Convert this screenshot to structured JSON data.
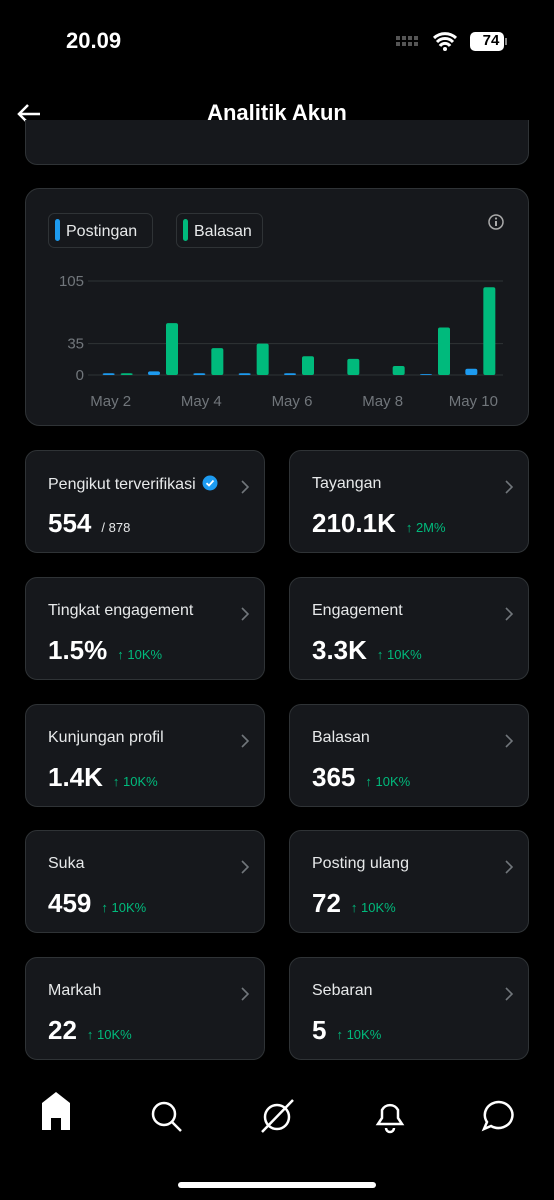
{
  "status": {
    "time": "20.09",
    "battery": "74"
  },
  "header": {
    "title": "Analitik Akun"
  },
  "chart": {
    "type": "bar",
    "categories": [
      "May 2",
      null,
      "May 4",
      null,
      "May 6",
      null,
      "May 8",
      null,
      "May 10"
    ],
    "series": [
      {
        "name": "Postingan",
        "color": "#1d9bf0",
        "values": [
          2,
          4,
          2,
          2,
          2,
          0,
          0,
          1,
          7
        ]
      },
      {
        "name": "Balasan",
        "color": "#00ba7c",
        "values": [
          2,
          58,
          30,
          35,
          21,
          18,
          10,
          53,
          98
        ]
      }
    ],
    "ylim": [
      0,
      105
    ],
    "yticks": [
      0,
      35,
      105
    ],
    "grid": true
  },
  "cards": [
    {
      "label": "Pengikut terverifikasi",
      "value": "554",
      "sub": "/ 878",
      "verified": true
    },
    {
      "label": "Tayangan",
      "value": "210.1K",
      "delta": "↑ 2M%"
    },
    {
      "label": "Tingkat engagement",
      "value": "1.5%",
      "delta": "↑ 10K%"
    },
    {
      "label": "Engagement",
      "value": "3.3K",
      "delta": "↑ 10K%"
    },
    {
      "label": "Kunjungan profil",
      "value": "1.4K",
      "delta": "↑ 10K%"
    },
    {
      "label": "Balasan",
      "value": "365",
      "delta": "↑ 10K%"
    },
    {
      "label": "Suka",
      "value": "459",
      "delta": "↑ 10K%"
    },
    {
      "label": "Posting ulang",
      "value": "72",
      "delta": "↑ 10K%"
    },
    {
      "label": "Markah",
      "value": "22",
      "delta": "↑ 10K%"
    },
    {
      "label": "Sebaran",
      "value": "5",
      "delta": "↑ 10K%"
    }
  ]
}
